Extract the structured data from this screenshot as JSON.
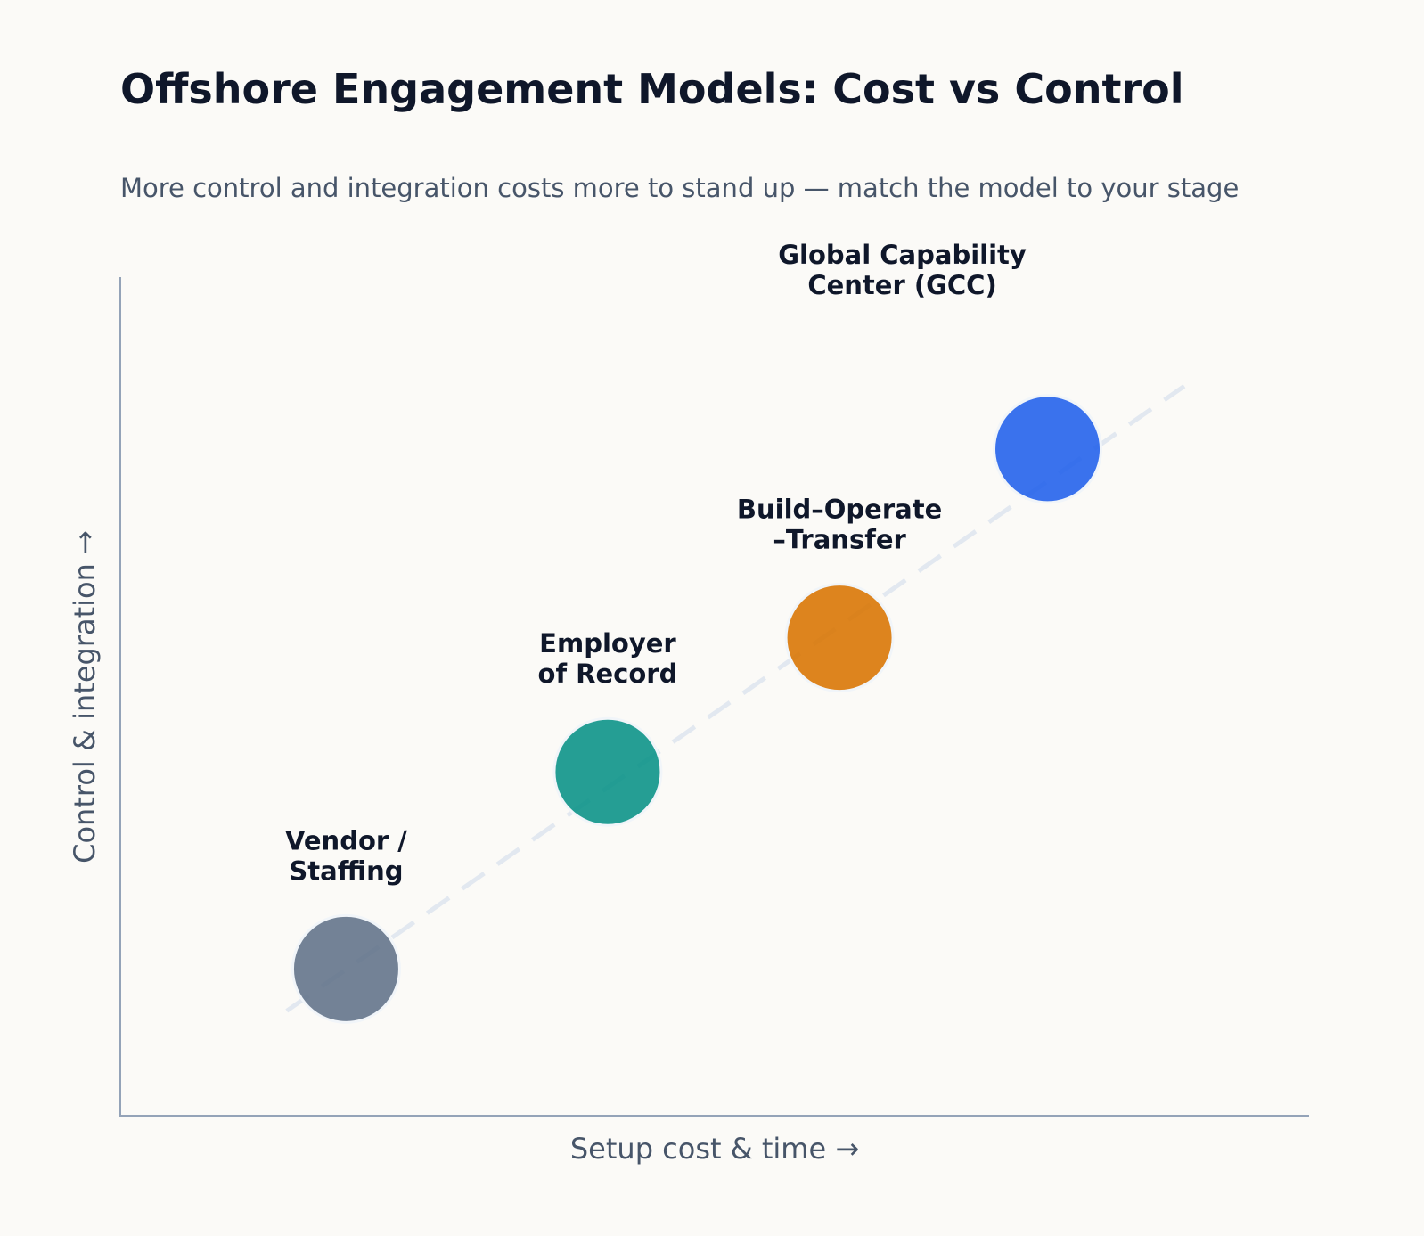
{
  "chart_data": {
    "type": "scatter",
    "title": "Offshore Engagement Models: Cost vs Control",
    "subtitle": "More control and integration costs more to stand up — match the model to your stage",
    "xlabel": "Setup cost & time  →",
    "ylabel": "Control & integration  →",
    "xlim": [
      0,
      10
    ],
    "ylim": [
      0,
      10
    ],
    "x_ticks": [],
    "y_ticks": [],
    "grid": false,
    "trend_line": {
      "style": "dashed",
      "color": "#e2e8f0",
      "from": [
        1.4,
        1.25
      ],
      "to": [
        8.95,
        8.7
      ]
    },
    "points": [
      {
        "name": "Vendor / Staffing",
        "label_lines": [
          "Vendor /",
          "Staffing"
        ],
        "x": 1.9,
        "y": 1.75,
        "color": "#64748b"
      },
      {
        "name": "Employer of Record",
        "label_lines": [
          "Employer",
          "of Record"
        ],
        "x": 4.1,
        "y": 4.1,
        "color": "#0d9488"
      },
      {
        "name": "Build–Operate–Transfer",
        "label_lines": [
          "Build–Operate",
          "–Transfer"
        ],
        "x": 6.05,
        "y": 5.7,
        "color": "#d97706"
      },
      {
        "name": "Global Capability Center (GCC)",
        "label_lines": [
          "Global Capability",
          "Center (GCC)"
        ],
        "x": 7.8,
        "y": 7.95,
        "color": "#2563eb"
      }
    ]
  }
}
